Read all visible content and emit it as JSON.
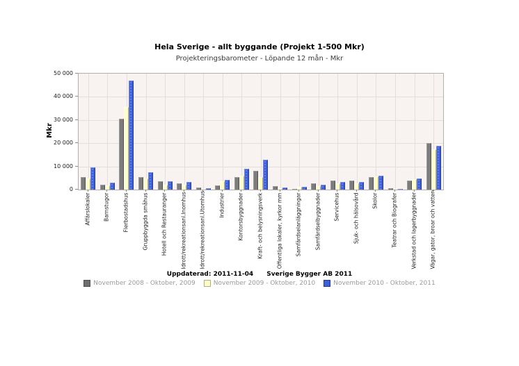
{
  "title": "Hela Sverige - allt byggande (Projekt 1-500 Mkr)",
  "subtitle": "Projekteringsbarometer - Löpande 12 mån - Mkr",
  "footer": {
    "updated_label": "Uppdaterad: 2011-11-04",
    "source_label": "Sverige Bygger AB 2011"
  },
  "colors": {
    "series_gray": "#7c7c7c",
    "series_yellow": "#ffffc9",
    "series_blue": "#3d5fd8",
    "plot_background": "#f8f3f1",
    "gridline": "#e3dedc",
    "plot_border": "#b3adad",
    "legend_text": "#9a9a9a"
  },
  "chart_data": {
    "type": "bar",
    "title": "Hela Sverige - allt byggande (Projekt 1-500 Mkr)",
    "subtitle": "Projekteringsbarometer - Löpande 12 mån - Mkr",
    "xlabel": "",
    "ylabel": "Mkr",
    "ylim": [
      0,
      50000
    ],
    "ytick_interval": 10000,
    "ytick_labels": [
      "0",
      "10 000",
      "20 000",
      "30 000",
      "40 000",
      "50 000"
    ],
    "grid": true,
    "legend_position": "bottom",
    "categories": [
      "Affärslokaler",
      "Barnstugor",
      "Flerbostadshus",
      "Gruppbyggda småhus",
      "Hotell och Restauranger",
      "Idrott/rekreationsanl.Inomhus",
      "Idrott/rekreationsanl.Utomhus",
      "Industrier",
      "Kontorsbyggnader",
      "Kraft- och belysningsverk",
      "Offentliga lokaler, kyrkor mm",
      "Samfärdselanläggningar",
      "Samfärdselbyggnader",
      "Servicehus",
      "Sjuk- och hälsovård",
      "Skolor",
      "Teatrar och Biografer",
      "Verkstad och lagerbyggnader",
      "Vägar, gator, broar och vatten"
    ],
    "series": [
      {
        "name": "November 2008 - Oktober, 2009",
        "color": "#7c7c7c",
        "values": [
          5500,
          2000,
          30400,
          5500,
          3600,
          2600,
          900,
          1800,
          5500,
          8200,
          1500,
          400,
          2600,
          3800,
          3800,
          5500,
          600,
          3900,
          20000
        ]
      },
      {
        "name": "November 2009 - Oktober, 2010",
        "color": "#ffffc9",
        "values": [
          4900,
          1700,
          35500,
          4800,
          2200,
          2100,
          400,
          3600,
          6100,
          5500,
          700,
          1100,
          1400,
          2700,
          2800,
          5700,
          300,
          4600,
          17500
        ]
      },
      {
        "name": "November 2010 - Oktober, 2011",
        "color": "#3d5fd8",
        "values": [
          9700,
          3100,
          47000,
          7400,
          3700,
          3300,
          700,
          4100,
          9000,
          12800,
          1000,
          1300,
          2000,
          3300,
          3300,
          5900,
          200,
          4900,
          19000
        ]
      }
    ]
  }
}
